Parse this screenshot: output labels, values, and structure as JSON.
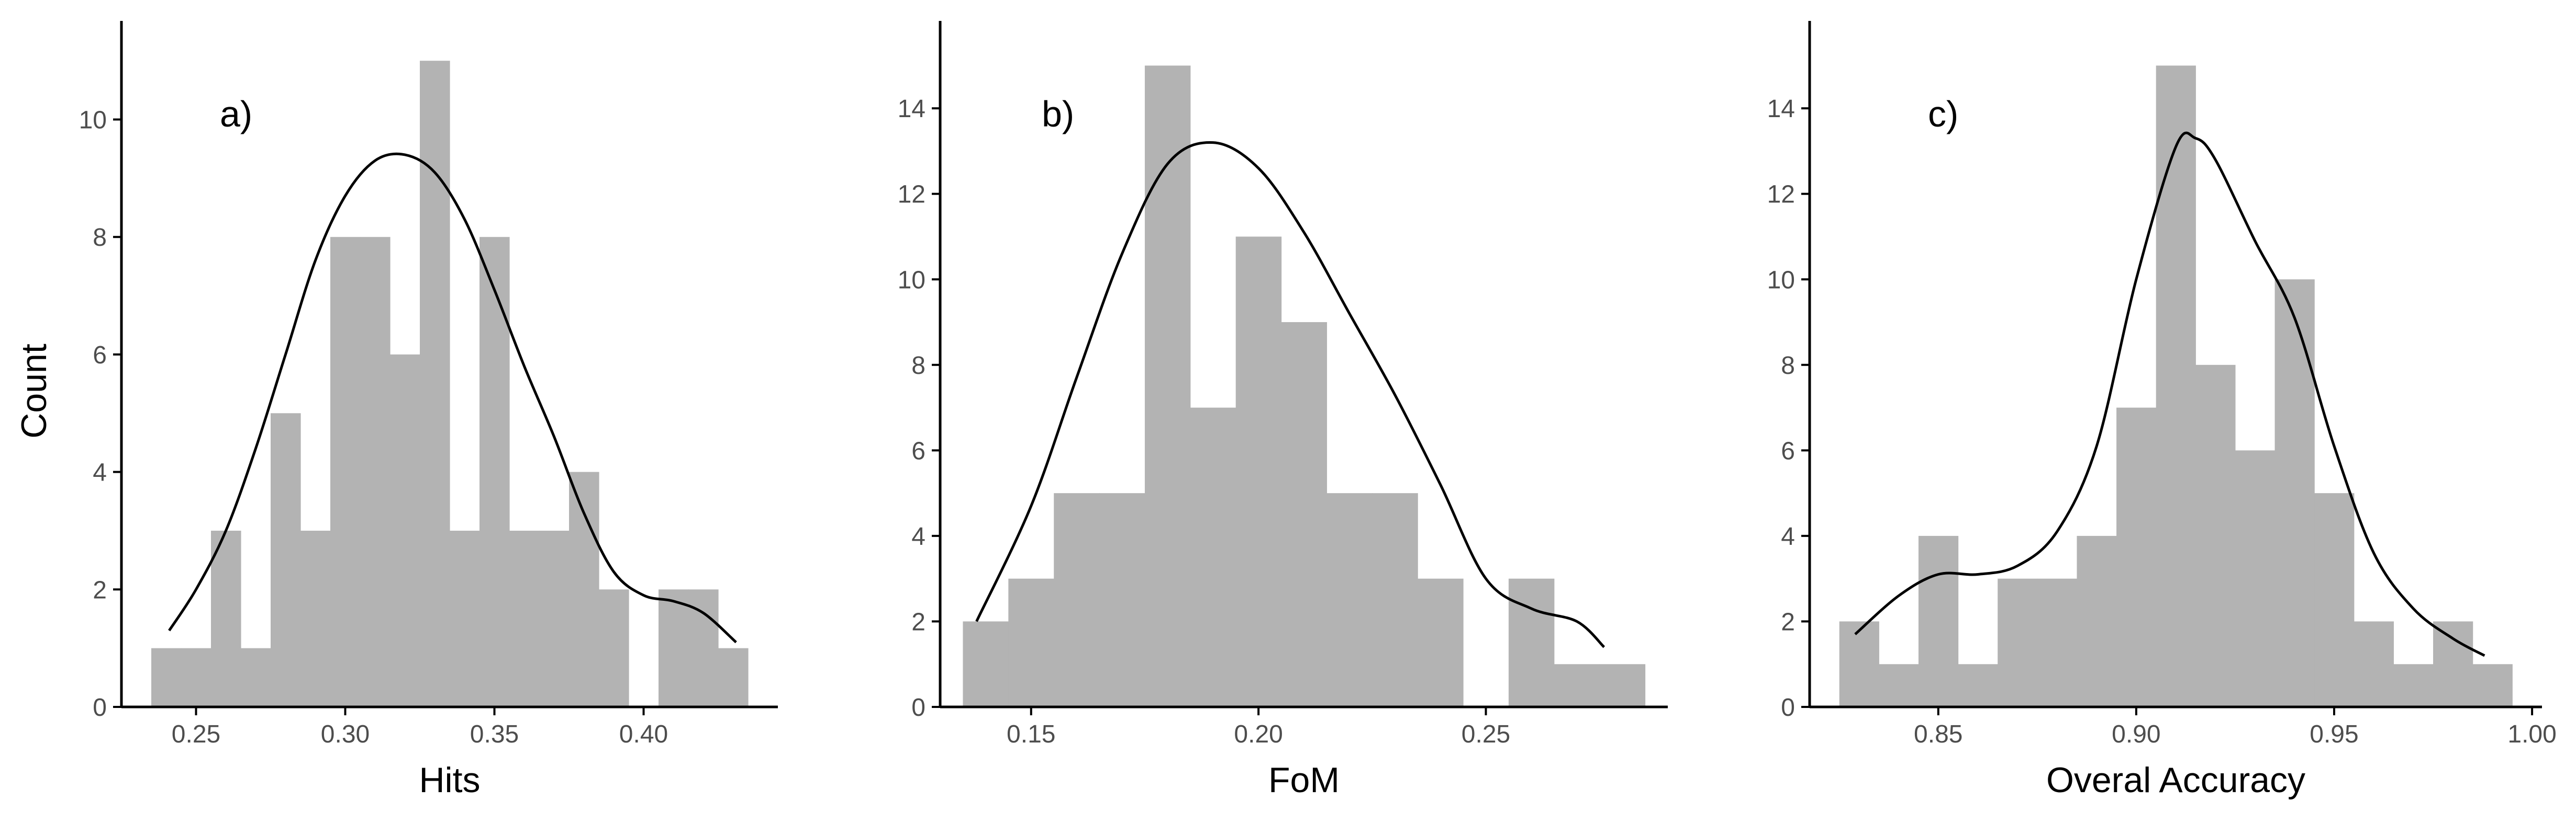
{
  "figure": {
    "ylabel": "Count",
    "bar_color": "#b3b3b3",
    "curve_color": "#000000",
    "axis_color": "#000000"
  },
  "chart_data": [
    {
      "type": "bar",
      "panel_label": "a)",
      "xlabel": "Hits",
      "ylabel": "Count",
      "xlim": [
        0.225,
        0.445
      ],
      "ylim": [
        0,
        11.5
      ],
      "xticks": [
        0.25,
        0.3,
        0.35,
        0.4
      ],
      "xtick_labels": [
        "0.25",
        "0.30",
        "0.35",
        "0.40"
      ],
      "yticks": [
        0,
        2,
        4,
        6,
        8,
        10
      ],
      "ytick_labels": [
        "0",
        "2",
        "4",
        "6",
        "8",
        "10"
      ],
      "bin_width": 0.01,
      "bins": [
        {
          "x": 0.24,
          "count": 1
        },
        {
          "x": 0.25,
          "count": 1
        },
        {
          "x": 0.26,
          "count": 3
        },
        {
          "x": 0.27,
          "count": 1
        },
        {
          "x": 0.28,
          "count": 5
        },
        {
          "x": 0.29,
          "count": 3
        },
        {
          "x": 0.3,
          "count": 8
        },
        {
          "x": 0.31,
          "count": 8
        },
        {
          "x": 0.32,
          "count": 6
        },
        {
          "x": 0.33,
          "count": 11
        },
        {
          "x": 0.34,
          "count": 3
        },
        {
          "x": 0.35,
          "count": 8
        },
        {
          "x": 0.36,
          "count": 3
        },
        {
          "x": 0.37,
          "count": 3
        },
        {
          "x": 0.38,
          "count": 4
        },
        {
          "x": 0.39,
          "count": 2
        },
        {
          "x": 0.4,
          "count": 0
        },
        {
          "x": 0.41,
          "count": 2
        },
        {
          "x": 0.42,
          "count": 2
        },
        {
          "x": 0.43,
          "count": 1
        }
      ],
      "density_curve": [
        [
          0.241,
          1.3
        ],
        [
          0.25,
          2.0
        ],
        [
          0.26,
          3.0
        ],
        [
          0.27,
          4.4
        ],
        [
          0.28,
          6.0
        ],
        [
          0.29,
          7.6
        ],
        [
          0.3,
          8.7
        ],
        [
          0.31,
          9.3
        ],
        [
          0.32,
          9.4
        ],
        [
          0.33,
          9.1
        ],
        [
          0.34,
          8.3
        ],
        [
          0.35,
          7.1
        ],
        [
          0.36,
          5.8
        ],
        [
          0.37,
          4.6
        ],
        [
          0.38,
          3.3
        ],
        [
          0.39,
          2.3
        ],
        [
          0.4,
          1.9
        ],
        [
          0.41,
          1.8
        ],
        [
          0.42,
          1.6
        ],
        [
          0.431,
          1.1
        ]
      ]
    },
    {
      "type": "bar",
      "panel_label": "b)",
      "xlabel": "FoM",
      "ylabel": "",
      "xlim": [
        0.13,
        0.29
      ],
      "ylim": [
        0,
        15.8
      ],
      "xticks": [
        0.15,
        0.2,
        0.25
      ],
      "xtick_labels": [
        "0.15",
        "0.20",
        "0.25"
      ],
      "yticks": [
        0,
        2,
        4,
        6,
        8,
        10,
        12,
        14
      ],
      "ytick_labels": [
        "0",
        "2",
        "4",
        "6",
        "8",
        "10",
        "12",
        "14"
      ],
      "bin_width": 0.01,
      "bins": [
        {
          "x": 0.14,
          "count": 2
        },
        {
          "x": 0.15,
          "count": 3
        },
        {
          "x": 0.16,
          "count": 5
        },
        {
          "x": 0.17,
          "count": 5
        },
        {
          "x": 0.18,
          "count": 15
        },
        {
          "x": 0.19,
          "count": 7
        },
        {
          "x": 0.2,
          "count": 11
        },
        {
          "x": 0.21,
          "count": 9
        },
        {
          "x": 0.22,
          "count": 5
        },
        {
          "x": 0.23,
          "count": 5
        },
        {
          "x": 0.24,
          "count": 3
        },
        {
          "x": 0.25,
          "count": 0
        },
        {
          "x": 0.26,
          "count": 3
        },
        {
          "x": 0.27,
          "count": 1
        },
        {
          "x": 0.28,
          "count": 1
        }
      ],
      "density_curve": [
        [
          0.138,
          2.0
        ],
        [
          0.15,
          4.7
        ],
        [
          0.16,
          7.7
        ],
        [
          0.17,
          10.6
        ],
        [
          0.18,
          12.7
        ],
        [
          0.19,
          13.2
        ],
        [
          0.2,
          12.6
        ],
        [
          0.21,
          11.1
        ],
        [
          0.22,
          9.2
        ],
        [
          0.23,
          7.3
        ],
        [
          0.24,
          5.2
        ],
        [
          0.25,
          3.0
        ],
        [
          0.26,
          2.3
        ],
        [
          0.27,
          2.0
        ],
        [
          0.276,
          1.4
        ]
      ]
    },
    {
      "type": "bar",
      "panel_label": "c)",
      "xlabel": "Overal Accuracy",
      "ylabel": "",
      "xlim": [
        0.8175,
        1.0025
      ],
      "ylim": [
        0,
        15.8
      ],
      "xticks": [
        0.85,
        0.9,
        0.95,
        1.0
      ],
      "xtick_labels": [
        "0.85",
        "0.90",
        "0.95",
        "1.00"
      ],
      "yticks": [
        0,
        2,
        4,
        6,
        8,
        10,
        12,
        14
      ],
      "ytick_labels": [
        "0",
        "2",
        "4",
        "6",
        "8",
        "10",
        "12",
        "14"
      ],
      "bin_width": 0.01,
      "bins": [
        {
          "x": 0.83,
          "count": 2
        },
        {
          "x": 0.84,
          "count": 1
        },
        {
          "x": 0.85,
          "count": 4
        },
        {
          "x": 0.86,
          "count": 1
        },
        {
          "x": 0.87,
          "count": 3
        },
        {
          "x": 0.88,
          "count": 3
        },
        {
          "x": 0.89,
          "count": 4
        },
        {
          "x": 0.9,
          "count": 7
        },
        {
          "x": 0.91,
          "count": 15
        },
        {
          "x": 0.92,
          "count": 8
        },
        {
          "x": 0.93,
          "count": 6
        },
        {
          "x": 0.94,
          "count": 10
        },
        {
          "x": 0.95,
          "count": 5
        },
        {
          "x": 0.96,
          "count": 2
        },
        {
          "x": 0.97,
          "count": 1
        },
        {
          "x": 0.98,
          "count": 2
        },
        {
          "x": 0.99,
          "count": 1
        }
      ],
      "density_curve": [
        [
          0.829,
          1.7
        ],
        [
          0.84,
          2.6
        ],
        [
          0.85,
          3.1
        ],
        [
          0.86,
          3.1
        ],
        [
          0.87,
          3.3
        ],
        [
          0.88,
          4.1
        ],
        [
          0.89,
          6.1
        ],
        [
          0.9,
          10.0
        ],
        [
          0.91,
          13.1
        ],
        [
          0.915,
          13.3
        ],
        [
          0.92,
          12.8
        ],
        [
          0.93,
          10.9
        ],
        [
          0.94,
          9.1
        ],
        [
          0.95,
          6.1
        ],
        [
          0.96,
          3.6
        ],
        [
          0.97,
          2.3
        ],
        [
          0.98,
          1.6
        ],
        [
          0.988,
          1.2
        ]
      ]
    }
  ]
}
